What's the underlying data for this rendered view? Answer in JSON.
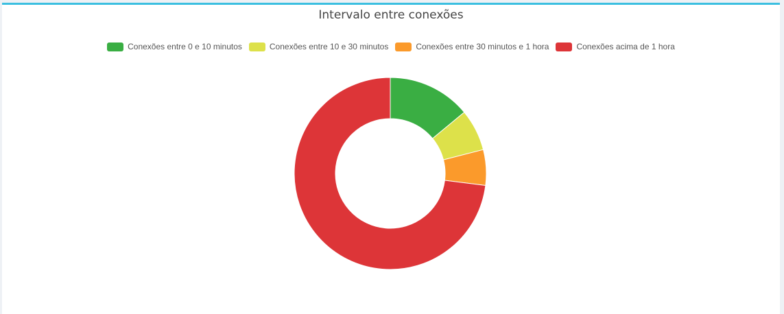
{
  "chart_data": {
    "type": "pie",
    "variant": "doughnut",
    "title": "Intervalo entre conexões",
    "legend_position": "top",
    "categories": [
      "Conexões entre 0 e 10 minutos",
      "Conexões entre 10 e 30 minutos",
      "Conexões entre 30 minutos e 1 hora",
      "Conexões acima de 1 hora"
    ],
    "values": [
      14,
      7,
      6,
      73
    ],
    "colors": [
      "#3aae43",
      "#dde14a",
      "#fb9a2b",
      "#dd3538"
    ]
  }
}
